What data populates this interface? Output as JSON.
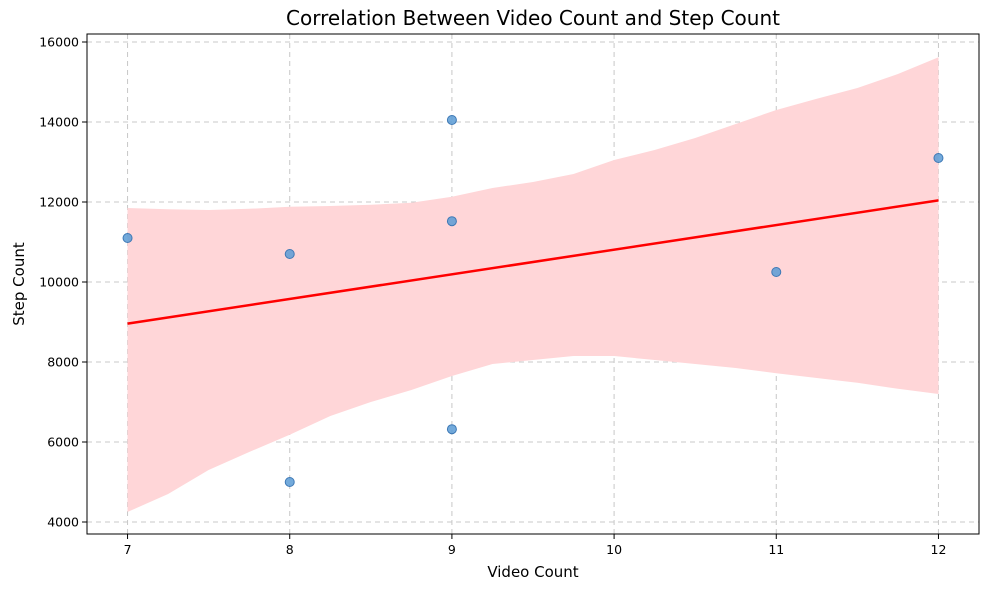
{
  "chart_data": {
    "type": "scatter",
    "title": "Correlation Between Video Count and Step Count",
    "xlabel": "Video Count",
    "ylabel": "Step Count",
    "xlim": [
      6.75,
      12.25
    ],
    "ylim": [
      3700,
      16200
    ],
    "xticks": [
      7,
      8,
      9,
      10,
      11,
      12
    ],
    "yticks": [
      4000,
      6000,
      8000,
      10000,
      12000,
      14000,
      16000
    ],
    "grid": true,
    "points": [
      {
        "x": 7,
        "y": 11100
      },
      {
        "x": 8,
        "y": 10700
      },
      {
        "x": 8,
        "y": 5000
      },
      {
        "x": 9,
        "y": 14050
      },
      {
        "x": 9,
        "y": 11520
      },
      {
        "x": 9,
        "y": 6320
      },
      {
        "x": 11,
        "y": 10250
      },
      {
        "x": 12,
        "y": 13100
      }
    ],
    "regression": {
      "x": [
        7,
        12
      ],
      "y": [
        8960,
        12040
      ]
    },
    "confidence_band": {
      "x": [
        7.0,
        7.25,
        7.5,
        7.75,
        8.0,
        8.25,
        8.5,
        8.75,
        9.0,
        9.25,
        9.5,
        9.75,
        10.0,
        10.25,
        10.5,
        10.75,
        11.0,
        11.25,
        11.5,
        11.75,
        12.0
      ],
      "upper": [
        11850,
        11820,
        11800,
        11830,
        11880,
        11900,
        11930,
        11980,
        12130,
        12350,
        12500,
        12700,
        13050,
        13300,
        13600,
        13950,
        14300,
        14580,
        14850,
        15200,
        15620
      ],
      "lower": [
        4250,
        4700,
        5300,
        5750,
        6180,
        6650,
        7000,
        7300,
        7650,
        7950,
        8050,
        8150,
        8150,
        8050,
        7950,
        7850,
        7720,
        7600,
        7480,
        7330,
        7200
      ]
    },
    "colors": {
      "points": "#5b9bd5",
      "point_edge": "#3d78b5",
      "regression": "#ff0000",
      "band": "#ffd6d8"
    }
  }
}
